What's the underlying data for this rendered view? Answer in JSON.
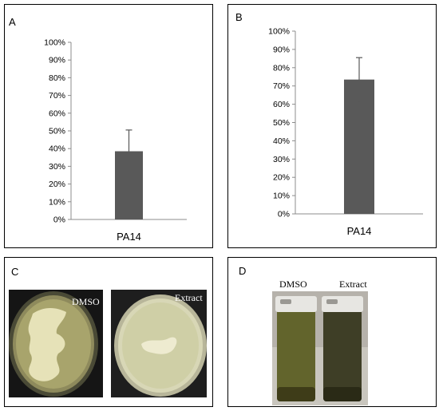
{
  "panels": {
    "a_label": "A",
    "b_label": "B",
    "c_label": "C",
    "d_label": "D"
  },
  "photos": {
    "c_left_label": "DMSO",
    "c_right_label": "Extract",
    "d_left_label": "DMSO",
    "d_right_label": "Extract"
  },
  "chart_data": [
    {
      "type": "bar",
      "panel": "A",
      "categories": [
        "PA14"
      ],
      "values": [
        0.385
      ],
      "error": [
        0.12
      ],
      "ylim": [
        0,
        1
      ],
      "yticks": [
        "0%",
        "10%",
        "20%",
        "30%",
        "40%",
        "50%",
        "60%",
        "70%",
        "80%",
        "90%",
        "100%"
      ],
      "bar_color": "#595959"
    },
    {
      "type": "bar",
      "panel": "B",
      "categories": [
        "PA14"
      ],
      "values": [
        0.735
      ],
      "error": [
        0.12
      ],
      "ylim": [
        0,
        1
      ],
      "yticks": [
        "0%",
        "10%",
        "20%",
        "30%",
        "40%",
        "50%",
        "60%",
        "70%",
        "80%",
        "90%",
        "100%"
      ],
      "bar_color": "#595959"
    }
  ]
}
